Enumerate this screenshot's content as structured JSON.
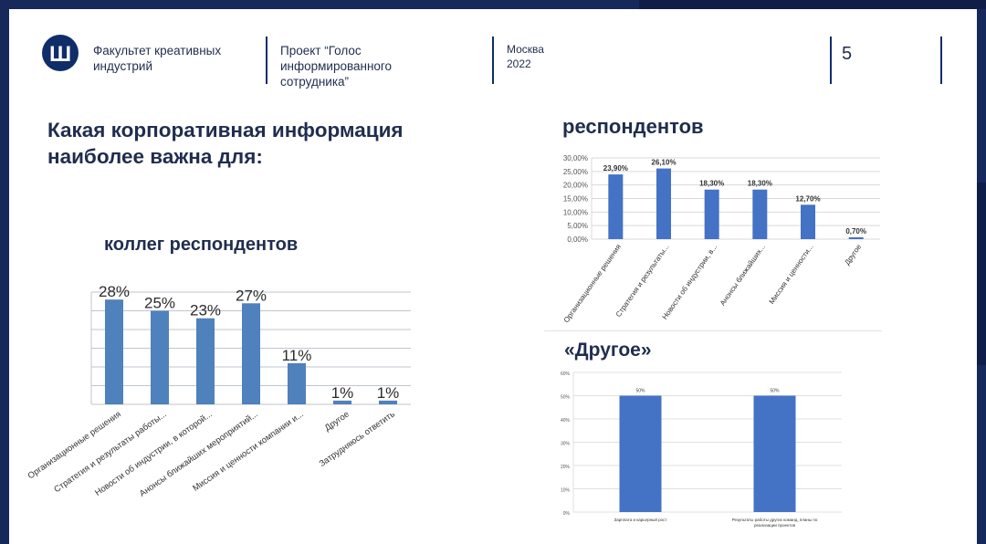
{
  "header": {
    "faculty": [
      "Факультет креативных",
      "индустрий"
    ],
    "project": [
      "Проект “Голос",
      "информированного",
      "сотрудника”"
    ],
    "city": "Москва",
    "year": "2022",
    "page_number": "5"
  },
  "main_title": "Какая корпоративная информация наиболее важна для:",
  "colors": {
    "bar_left": "#4f81bd",
    "bar_right": "#4472c4",
    "navy": "#1f2d4e"
  },
  "chart_data": [
    {
      "type": "bar",
      "title": "коллег респондентов",
      "categories": [
        "Организационные решения",
        "Стратегия и результаты работы...",
        "Новости об индустрии, в которой...",
        "Анонсы ближайших мероприятий...",
        "Миссия и ценности компании и...",
        "Другое",
        "Затрудняюсь ответить"
      ],
      "values": [
        28,
        25,
        23,
        27,
        11,
        1,
        1
      ],
      "data_labels": [
        "28%",
        "25%",
        "23%",
        "27%",
        "11%",
        "1%",
        "1%"
      ],
      "ylim": [
        0,
        30
      ],
      "grid": true
    },
    {
      "type": "bar",
      "title": "респондентов",
      "categories": [
        "Организационные решения",
        "Стратегия и результаты...",
        "Новости об индустрии, в...",
        "Анонсы ближайших...",
        "Миссия и ценности...",
        "Другое"
      ],
      "values": [
        23.9,
        26.1,
        18.3,
        18.3,
        12.7,
        0.7
      ],
      "data_labels": [
        "23,90%",
        "26,10%",
        "18,30%",
        "18,30%",
        "12,70%",
        "0,70%"
      ],
      "ylim": [
        0,
        30
      ],
      "yticks": [
        "0,00%",
        "5,00%",
        "10,00%",
        "15,00%",
        "20,00%",
        "25,00%",
        "30,00%"
      ],
      "grid": true
    },
    {
      "type": "bar",
      "title": "«Другое»",
      "categories": [
        "Зарплата и карьерный рост",
        "Результаты работы других команд, планы по реализации проектов"
      ],
      "values": [
        50,
        50
      ],
      "data_labels": [
        "50%",
        "50%"
      ],
      "ylim": [
        0,
        60
      ],
      "yticks": [
        "0%",
        "10%",
        "20%",
        "30%",
        "40%",
        "50%",
        "60%"
      ],
      "grid": true
    }
  ]
}
